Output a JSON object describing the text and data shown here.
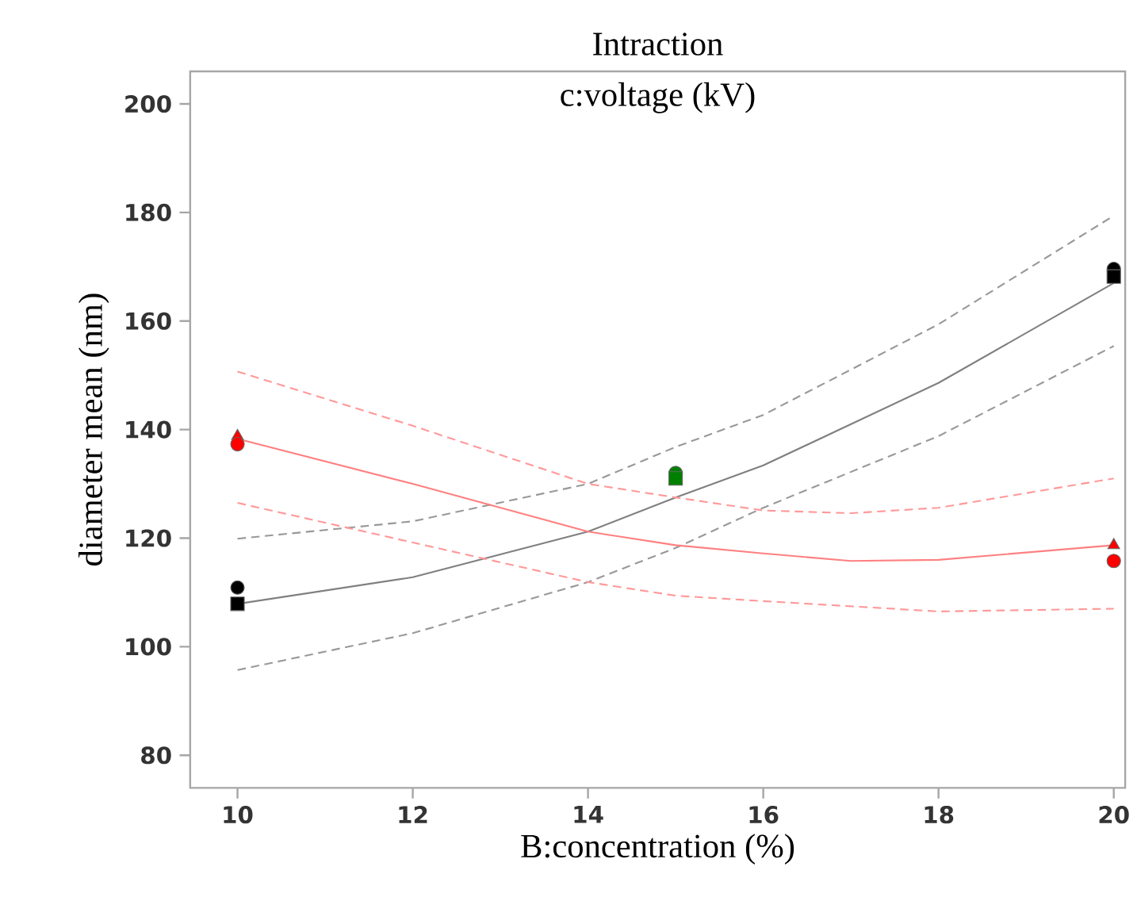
{
  "chart_data": {
    "type": "line",
    "title": "Intraction",
    "subtitle": "c:voltage (kV)",
    "xlabel": "B:concentration (%)",
    "ylabel": "diameter mean (nm)",
    "xlim": [
      9.46,
      20.13
    ],
    "ylim": [
      74,
      206
    ],
    "xticks": [
      10,
      12,
      14,
      16,
      18,
      20
    ],
    "yticks": [
      80,
      100,
      120,
      140,
      160,
      180,
      200
    ],
    "series": [
      {
        "color": "#808080",
        "line_style": "solid",
        "x": [
          10,
          12,
          14,
          15,
          16,
          18,
          20
        ],
        "values": [
          107.9,
          112.8,
          121.2,
          127.5,
          133.4,
          148.6,
          167
        ]
      },
      {
        "color": "#999999",
        "line_style": "dashed",
        "x": [
          10,
          12,
          14,
          15,
          16,
          18,
          20
        ],
        "values": [
          119.9,
          123.1,
          130,
          136.8,
          142.7,
          159.4,
          179.4
        ]
      },
      {
        "color": "#999999",
        "line_style": "dashed",
        "x": [
          10,
          12,
          14,
          15,
          16,
          18,
          20
        ],
        "values": [
          95.7,
          102.5,
          111.9,
          118.2,
          125.6,
          138.8,
          155.4
        ]
      },
      {
        "color": "#ff8080",
        "line_style": "solid",
        "x": [
          10,
          12,
          14,
          15,
          16,
          17,
          18,
          20
        ],
        "values": [
          138.3,
          130,
          121.2,
          118.7,
          117.2,
          115.8,
          116,
          118.7
        ]
      },
      {
        "color": "#ff9999",
        "line_style": "dashed",
        "x": [
          10,
          12,
          14,
          15,
          16,
          17,
          18,
          20
        ],
        "values": [
          150.7,
          140.7,
          130,
          127.5,
          125.1,
          124.6,
          125.6,
          131
        ]
      },
      {
        "color": "#ff9999",
        "line_style": "dashed",
        "x": [
          10,
          12,
          14,
          15,
          16,
          18,
          20
        ],
        "values": [
          126.5,
          119.2,
          111.9,
          109.4,
          108.4,
          106.5,
          107
        ]
      },
      {
        "type": "scatter",
        "color": "#000000",
        "marker": "circle",
        "x": [
          10,
          20
        ],
        "values": [
          110.9,
          169.6
        ]
      },
      {
        "type": "scatter",
        "color": "#000000",
        "marker": "square",
        "x": [
          10,
          20
        ],
        "values": [
          107.9,
          168.2
        ]
      },
      {
        "type": "scatter",
        "color": "#008000",
        "marker": "circle",
        "x": [
          15
        ],
        "values": [
          132
        ]
      },
      {
        "type": "scatter",
        "color": "#008000",
        "marker": "square",
        "x": [
          15
        ],
        "values": [
          131
        ]
      },
      {
        "type": "scatter",
        "color": "#ff0000",
        "marker": "triangle",
        "x": [
          10,
          20
        ],
        "values": [
          138.8,
          118.7
        ]
      },
      {
        "type": "scatter",
        "color": "#ff0000",
        "marker": "circle",
        "x": [
          10,
          20
        ],
        "values": [
          137.3,
          115.8
        ]
      }
    ]
  }
}
